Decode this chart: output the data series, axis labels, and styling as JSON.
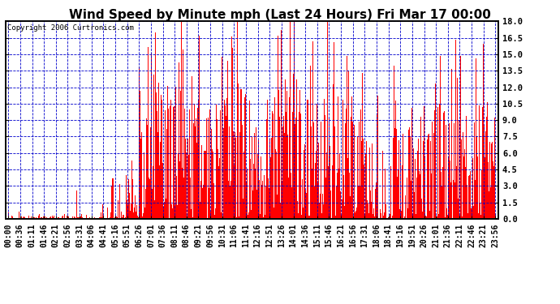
{
  "title": "Wind Speed by Minute mph (Last 24 Hours) Fri Mar 17 00:00",
  "copyright": "Copyright 2006 Curtronics.com",
  "ylabel_right_ticks": [
    0.0,
    1.5,
    3.0,
    4.5,
    6.0,
    7.5,
    9.0,
    10.5,
    12.0,
    13.5,
    15.0,
    16.5,
    18.0
  ],
  "ylim": [
    0,
    18.0
  ],
  "bar_color": "#ff0000",
  "grid_color": "#0000cc",
  "background_color": "#ffffff",
  "title_fontsize": 11,
  "copyright_fontsize": 6.5,
  "tick_fontsize": 7.5,
  "n_minutes": 1440,
  "x_tick_labels": [
    "00:00",
    "00:36",
    "01:11",
    "01:46",
    "02:21",
    "02:56",
    "03:31",
    "04:06",
    "04:41",
    "05:16",
    "05:51",
    "06:26",
    "07:01",
    "07:36",
    "08:11",
    "08:46",
    "09:21",
    "09:56",
    "10:31",
    "11:06",
    "11:41",
    "12:16",
    "12:51",
    "13:26",
    "14:01",
    "14:36",
    "15:11",
    "15:46",
    "16:21",
    "16:56",
    "17:31",
    "18:06",
    "18:41",
    "19:16",
    "19:51",
    "20:26",
    "21:01",
    "21:36",
    "22:11",
    "22:46",
    "23:21",
    "23:56"
  ]
}
